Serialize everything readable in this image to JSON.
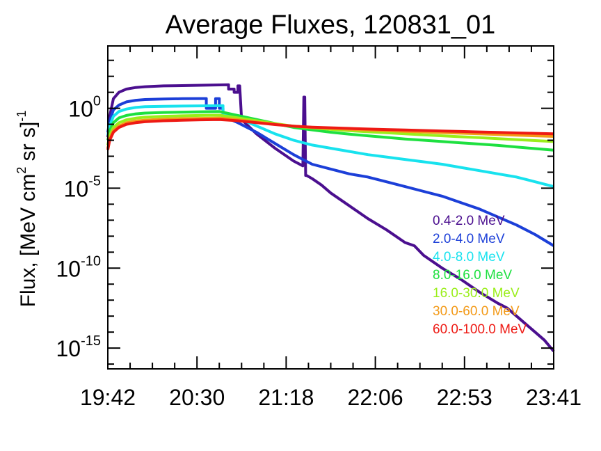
{
  "chart_data": {
    "type": "line",
    "title": "Average Fluxes, 120831_01",
    "xlabel": "",
    "ylabel": {
      "prefix": "Flux, [MeV cm",
      "sup1": "2",
      "middle": " sr s]",
      "sup2": "-1"
    },
    "yscale": "log",
    "ylim_exp": [
      -16.3,
      3.9
    ],
    "xlim_min": [
      0,
      240
    ],
    "x_ticks": [
      "19:42",
      "20:30",
      "21:18",
      "22:06",
      "22:53",
      "23:41"
    ],
    "y_ticks": [
      {
        "base": "10",
        "exp": "0",
        "value_exp": 0
      },
      {
        "base": "10",
        "exp": "-5",
        "value_exp": -5
      },
      {
        "base": "10",
        "exp": "-10",
        "value_exp": -10
      },
      {
        "base": "10",
        "exp": "-15",
        "value_exp": -15
      }
    ],
    "grid": false,
    "legend_position": "bottom-right",
    "series": [
      {
        "name": "0.4-2.0 MeV",
        "color": "#4b0f8f",
        "x": [
          0,
          1,
          3,
          6,
          10,
          15,
          20,
          30,
          40,
          50,
          60,
          65,
          65,
          68,
          68,
          70,
          70,
          71,
          72,
          80,
          90,
          100,
          105,
          105.5,
          106,
          106.5,
          107,
          110,
          115,
          120,
          130,
          140,
          150,
          160,
          165,
          170,
          180,
          190,
          200,
          210,
          215,
          220,
          225,
          230,
          235,
          240
        ],
        "y_exp": [
          -1.8,
          -0.5,
          0.6,
          1.0,
          1.2,
          1.3,
          1.35,
          1.4,
          1.42,
          1.44,
          1.46,
          1.47,
          1.2,
          1.2,
          1.0,
          1.0,
          1.4,
          1.4,
          -0.7,
          -1.6,
          -2.5,
          -3.3,
          -3.6,
          0.7,
          0.7,
          -4.2,
          -4.2,
          -4.4,
          -4.8,
          -5.3,
          -6.1,
          -6.9,
          -7.6,
          -8.4,
          -8.6,
          -9.2,
          -10.0,
          -10.7,
          -11.5,
          -12.2,
          -12.5,
          -13.0,
          -13.5,
          -14.0,
          -14.5,
          -15.2
        ]
      },
      {
        "name": "2.0-4.0 MeV",
        "color": "#1c3fd8",
        "x": [
          0,
          1,
          3,
          6,
          10,
          15,
          20,
          30,
          40,
          50,
          53,
          53,
          58,
          58,
          60,
          60,
          62,
          62,
          70,
          80,
          90,
          100,
          105,
          110,
          120,
          130,
          140,
          150,
          160,
          170,
          180,
          190,
          200,
          210,
          220,
          230,
          240
        ],
        "y_exp": [
          -1.5,
          -0.8,
          -0.1,
          0.2,
          0.4,
          0.5,
          0.55,
          0.58,
          0.6,
          0.61,
          0.61,
          0.0,
          0.0,
          0.6,
          0.6,
          0.0,
          0.0,
          -0.5,
          -0.9,
          -1.5,
          -2.2,
          -2.9,
          -3.2,
          -3.5,
          -3.8,
          -4.1,
          -4.3,
          -4.6,
          -4.9,
          -5.2,
          -5.5,
          -5.9,
          -6.3,
          -6.8,
          -7.3,
          -7.9,
          -8.6
        ]
      },
      {
        "name": "4.0-8.0 MeV",
        "color": "#18e2ee",
        "x": [
          0,
          1,
          3,
          6,
          10,
          15,
          20,
          30,
          40,
          50,
          60,
          62,
          62,
          65,
          70,
          80,
          90,
          100,
          110,
          120,
          130,
          140,
          150,
          160,
          170,
          180,
          190,
          200,
          210,
          220,
          230,
          240
        ],
        "y_exp": [
          -1.7,
          -1.1,
          -0.5,
          -0.2,
          -0.05,
          0.05,
          0.1,
          0.12,
          0.14,
          0.15,
          0.16,
          0.16,
          -0.3,
          -0.35,
          -0.6,
          -1.1,
          -1.6,
          -2.0,
          -2.3,
          -2.5,
          -2.7,
          -2.9,
          -3.05,
          -3.2,
          -3.35,
          -3.5,
          -3.7,
          -3.9,
          -4.1,
          -4.3,
          -4.6,
          -4.9
        ]
      },
      {
        "name": "8.0-16.0 MeV",
        "color": "#1ee040",
        "x": [
          0,
          1,
          3,
          6,
          10,
          15,
          20,
          30,
          40,
          50,
          60,
          70,
          80,
          90,
          100,
          110,
          120,
          130,
          140,
          150,
          160,
          170,
          180,
          190,
          200,
          210,
          220,
          230,
          240
        ],
        "y_exp": [
          -2.0,
          -1.4,
          -0.9,
          -0.6,
          -0.45,
          -0.35,
          -0.3,
          -0.26,
          -0.24,
          -0.22,
          -0.2,
          -0.45,
          -0.7,
          -0.95,
          -1.2,
          -1.35,
          -1.5,
          -1.62,
          -1.72,
          -1.82,
          -1.92,
          -2.0,
          -2.08,
          -2.16,
          -2.24,
          -2.32,
          -2.42,
          -2.52,
          -2.62
        ]
      },
      {
        "name": "16.0-30.0 MeV",
        "color": "#9aee1a",
        "x": [
          0,
          1,
          3,
          6,
          10,
          15,
          20,
          30,
          40,
          50,
          60,
          70,
          80,
          90,
          100,
          110,
          120,
          130,
          140,
          150,
          160,
          170,
          180,
          190,
          200,
          210,
          220,
          230,
          240
        ],
        "y_exp": [
          -2.3,
          -1.7,
          -1.2,
          -0.9,
          -0.72,
          -0.62,
          -0.56,
          -0.5,
          -0.47,
          -0.45,
          -0.43,
          -0.6,
          -0.78,
          -0.96,
          -1.12,
          -1.22,
          -1.32,
          -1.4,
          -1.47,
          -1.53,
          -1.6,
          -1.66,
          -1.72,
          -1.78,
          -1.84,
          -1.9,
          -1.96,
          -2.02,
          -2.08
        ]
      },
      {
        "name": "30.0-60.0 MeV",
        "color": "#f39a18",
        "x": [
          0,
          1,
          3,
          6,
          10,
          15,
          20,
          30,
          40,
          50,
          60,
          70,
          80,
          90,
          100,
          110,
          120,
          130,
          140,
          150,
          160,
          170,
          180,
          190,
          200,
          210,
          220,
          230,
          240
        ],
        "y_exp": [
          -2.5,
          -1.9,
          -1.4,
          -1.1,
          -0.9,
          -0.8,
          -0.74,
          -0.68,
          -0.65,
          -0.63,
          -0.61,
          -0.72,
          -0.86,
          -1.0,
          -1.12,
          -1.2,
          -1.26,
          -1.31,
          -1.36,
          -1.4,
          -1.44,
          -1.48,
          -1.52,
          -1.56,
          -1.6,
          -1.64,
          -1.68,
          -1.72,
          -1.76
        ]
      },
      {
        "name": "60.0-100.0 MeV",
        "color": "#ee1a14",
        "x": [
          0,
          1,
          3,
          6,
          10,
          15,
          20,
          30,
          40,
          50,
          60,
          70,
          80,
          90,
          100,
          110,
          120,
          130,
          140,
          150,
          160,
          170,
          180,
          190,
          200,
          210,
          220,
          230,
          240
        ],
        "y_exp": [
          -2.6,
          -2.0,
          -1.5,
          -1.2,
          -1.0,
          -0.9,
          -0.84,
          -0.78,
          -0.75,
          -0.72,
          -0.7,
          -0.78,
          -0.9,
          -1.02,
          -1.12,
          -1.18,
          -1.22,
          -1.26,
          -1.3,
          -1.33,
          -1.36,
          -1.39,
          -1.42,
          -1.45,
          -1.48,
          -1.51,
          -1.54,
          -1.57,
          -1.6
        ]
      }
    ]
  }
}
